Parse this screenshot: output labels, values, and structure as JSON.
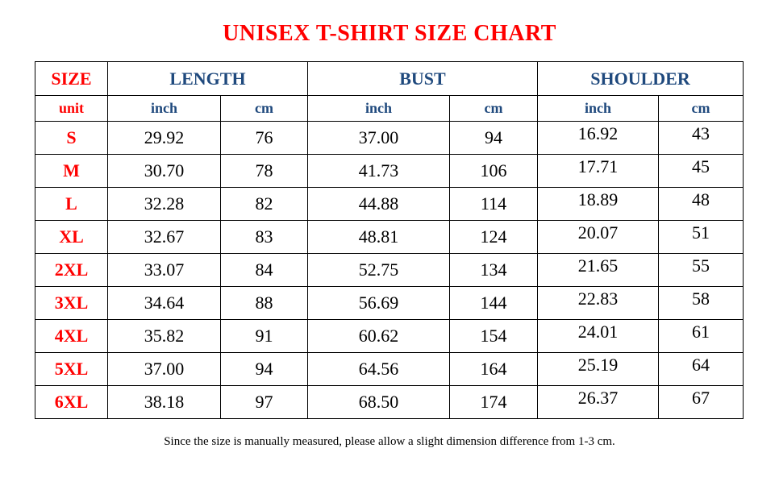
{
  "title": "UNISEX T-SHIRT SIZE CHART",
  "headers": {
    "size": "SIZE",
    "length": "LENGTH",
    "bust": "BUST",
    "shoulder": "SHOULDER"
  },
  "units": {
    "label": "unit",
    "inch": "inch",
    "cm": "cm"
  },
  "rows": [
    {
      "size": "S",
      "length_in": "29.92",
      "length_cm": "76",
      "bust_in": "37.00",
      "bust_cm": "94",
      "shoulder_in": "16.92",
      "shoulder_cm": "43"
    },
    {
      "size": "M",
      "length_in": "30.70",
      "length_cm": "78",
      "bust_in": "41.73",
      "bust_cm": "106",
      "shoulder_in": "17.71",
      "shoulder_cm": "45"
    },
    {
      "size": "L",
      "length_in": "32.28",
      "length_cm": "82",
      "bust_in": "44.88",
      "bust_cm": "114",
      "shoulder_in": "18.89",
      "shoulder_cm": "48"
    },
    {
      "size": "XL",
      "length_in": "32.67",
      "length_cm": "83",
      "bust_in": "48.81",
      "bust_cm": "124",
      "shoulder_in": "20.07",
      "shoulder_cm": "51"
    },
    {
      "size": "2XL",
      "length_in": "33.07",
      "length_cm": "84",
      "bust_in": "52.75",
      "bust_cm": "134",
      "shoulder_in": "21.65",
      "shoulder_cm": "55"
    },
    {
      "size": "3XL",
      "length_in": "34.64",
      "length_cm": "88",
      "bust_in": "56.69",
      "bust_cm": "144",
      "shoulder_in": "22.83",
      "shoulder_cm": "58"
    },
    {
      "size": "4XL",
      "length_in": "35.82",
      "length_cm": "91",
      "bust_in": "60.62",
      "bust_cm": "154",
      "shoulder_in": "24.01",
      "shoulder_cm": "61"
    },
    {
      "size": "5XL",
      "length_in": "37.00",
      "length_cm": "94",
      "bust_in": "64.56",
      "bust_cm": "164",
      "shoulder_in": "25.19",
      "shoulder_cm": "64"
    },
    {
      "size": "6XL",
      "length_in": "38.18",
      "length_cm": "97",
      "bust_in": "68.50",
      "bust_cm": "174",
      "shoulder_in": "26.37",
      "shoulder_cm": "67"
    }
  ],
  "note": "Since the size is manually measured, please allow a slight dimension difference from 1-3 cm.",
  "colors": {
    "title": "#ff0000",
    "header": "#1f497d",
    "size_label": "#ff0000"
  }
}
